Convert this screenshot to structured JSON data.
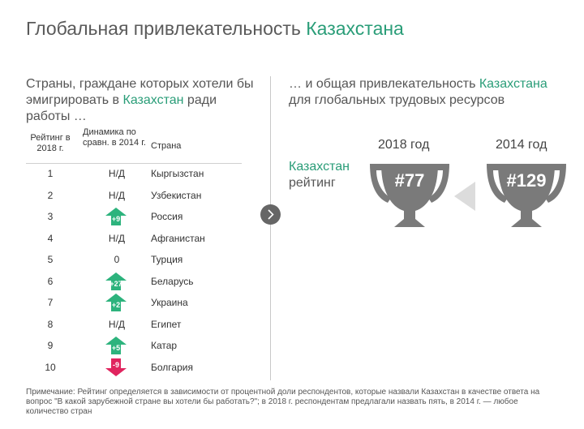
{
  "title": {
    "part1": "Глобальная привлекательность ",
    "part2": "Казахстана"
  },
  "left_heading": {
    "part1": "Страны, граждане которых хотели бы эмигрировать в ",
    "highlight": "Казахстан",
    "part2": " ради работы …"
  },
  "table": {
    "headers": {
      "rank": "Рейтинг в 2018 г.",
      "dynamics": "Динамика по сравн. в 2014 г.",
      "country": "Страна"
    },
    "rows": [
      {
        "rank": "1",
        "dyn": "Н/Д",
        "country": "Кыргызстан",
        "type": "text"
      },
      {
        "rank": "2",
        "dyn": "Н/Д",
        "country": "Узбекистан",
        "type": "text"
      },
      {
        "rank": "3",
        "dyn": "+9",
        "country": "Россия",
        "type": "up"
      },
      {
        "rank": "4",
        "dyn": "Н/Д",
        "country": "Афганистан",
        "type": "text"
      },
      {
        "rank": "5",
        "dyn": "0",
        "country": "Турция",
        "type": "text"
      },
      {
        "rank": "6",
        "dyn": "+27",
        "country": "Беларусь",
        "type": "up"
      },
      {
        "rank": "7",
        "dyn": "+2",
        "country": "Украина",
        "type": "up"
      },
      {
        "rank": "8",
        "dyn": "Н/Д",
        "country": "Египет",
        "type": "text"
      },
      {
        "rank": "9",
        "dyn": "+5",
        "country": "Катар",
        "type": "up"
      },
      {
        "rank": "10",
        "dyn": "-9",
        "country": "Болгария",
        "type": "down"
      }
    ]
  },
  "right_heading": {
    "part1": "… и общая привлекательность ",
    "highlight": "Казахстана",
    "part2": " для глобальных трудовых ресурсов"
  },
  "kz_label": {
    "name": "Казахстан",
    "suffix": "рейтинг"
  },
  "years": [
    {
      "year": "2018 год",
      "rank": "#77"
    },
    {
      "year": "2014 год",
      "rank": "#129"
    }
  ],
  "note": "Примечание: Рейтинг определяется в зависимости от процентной доли респондентов, которые назвали Казахстан в качестве ответа на вопрос \"В какой зарубежной стране вы хотели бы работать?\"; в 2018 г. респондентам предлагали назвать пять, в 2014 г. — любое количество стран",
  "colors": {
    "accent": "#2a9d78",
    "up_arrow": "#2db37d",
    "down_arrow": "#e0245e",
    "trophy": "#7a7a7a"
  }
}
